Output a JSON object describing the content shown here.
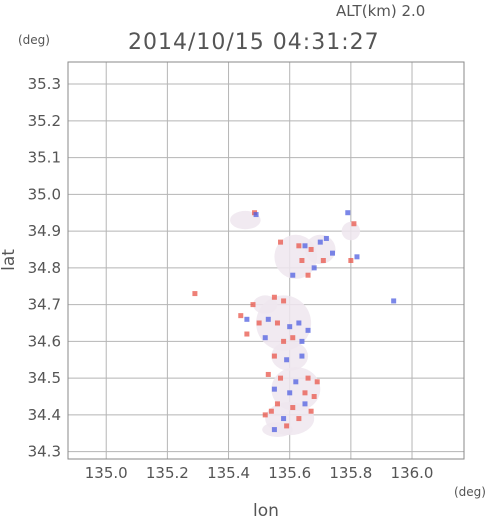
{
  "header": {
    "alt_label": "ALT(km) 2.0",
    "datetime": "2014/10/15 04:31:27"
  },
  "chart_data": {
    "type": "scatter",
    "title": "2014/10/15 04:31:27",
    "xlabel": "lon",
    "ylabel": "lat",
    "xunit": "(deg)",
    "yunit": "(deg)",
    "xlim": [
      134.875,
      136.17
    ],
    "ylim": [
      34.28,
      35.36
    ],
    "xticks": [
      "135.0",
      "135.2",
      "135.4",
      "135.6",
      "135.8",
      "136.0"
    ],
    "yticks": [
      "34.3",
      "34.4",
      "34.5",
      "34.6",
      "34.7",
      "34.8",
      "34.9",
      "35.0",
      "35.1",
      "35.2",
      "35.3"
    ],
    "grid": true,
    "colors": {
      "positive": "#e8564a",
      "negative": "#4f5fe0",
      "neutral": "#efe6ee"
    },
    "echo_regions": [
      {
        "lon": 135.455,
        "lat": 34.93,
        "w": 0.1,
        "h": 0.05
      },
      {
        "lon": 135.62,
        "lat": 34.83,
        "w": 0.14,
        "h": 0.12
      },
      {
        "lon": 135.7,
        "lat": 34.85,
        "w": 0.1,
        "h": 0.08
      },
      {
        "lon": 135.52,
        "lat": 34.7,
        "w": 0.08,
        "h": 0.05
      },
      {
        "lon": 135.58,
        "lat": 34.65,
        "w": 0.18,
        "h": 0.15
      },
      {
        "lon": 135.6,
        "lat": 34.56,
        "w": 0.12,
        "h": 0.08
      },
      {
        "lon": 135.62,
        "lat": 34.47,
        "w": 0.16,
        "h": 0.12
      },
      {
        "lon": 135.6,
        "lat": 34.39,
        "w": 0.16,
        "h": 0.09
      },
      {
        "lon": 135.56,
        "lat": 34.36,
        "w": 0.1,
        "h": 0.04
      },
      {
        "lon": 135.8,
        "lat": 34.9,
        "w": 0.06,
        "h": 0.05
      }
    ],
    "points": [
      {
        "lon": 135.29,
        "lat": 34.73,
        "v": 1
      },
      {
        "lon": 135.94,
        "lat": 34.71,
        "v": -1
      },
      {
        "lon": 135.485,
        "lat": 34.95,
        "v": 1
      },
      {
        "lon": 135.49,
        "lat": 34.945,
        "v": -1
      },
      {
        "lon": 135.81,
        "lat": 34.92,
        "v": 1
      },
      {
        "lon": 135.79,
        "lat": 34.95,
        "v": -1
      },
      {
        "lon": 135.57,
        "lat": 34.87,
        "v": 1
      },
      {
        "lon": 135.63,
        "lat": 34.86,
        "v": 1
      },
      {
        "lon": 135.65,
        "lat": 34.86,
        "v": -1
      },
      {
        "lon": 135.67,
        "lat": 34.85,
        "v": 1
      },
      {
        "lon": 135.7,
        "lat": 34.87,
        "v": -1
      },
      {
        "lon": 135.72,
        "lat": 34.88,
        "v": -1
      },
      {
        "lon": 135.64,
        "lat": 34.82,
        "v": 1
      },
      {
        "lon": 135.61,
        "lat": 34.78,
        "v": -1
      },
      {
        "lon": 135.66,
        "lat": 34.78,
        "v": 1
      },
      {
        "lon": 135.68,
        "lat": 34.8,
        "v": -1
      },
      {
        "lon": 135.71,
        "lat": 34.82,
        "v": 1
      },
      {
        "lon": 135.74,
        "lat": 34.84,
        "v": -1
      },
      {
        "lon": 135.8,
        "lat": 34.82,
        "v": 1
      },
      {
        "lon": 135.82,
        "lat": 34.83,
        "v": -1
      },
      {
        "lon": 135.48,
        "lat": 34.7,
        "v": 1
      },
      {
        "lon": 135.55,
        "lat": 34.72,
        "v": 1
      },
      {
        "lon": 135.58,
        "lat": 34.71,
        "v": 1
      },
      {
        "lon": 135.44,
        "lat": 34.67,
        "v": 1
      },
      {
        "lon": 135.46,
        "lat": 34.66,
        "v": -1
      },
      {
        "lon": 135.5,
        "lat": 34.65,
        "v": 1
      },
      {
        "lon": 135.53,
        "lat": 34.66,
        "v": -1
      },
      {
        "lon": 135.56,
        "lat": 34.65,
        "v": 1
      },
      {
        "lon": 135.6,
        "lat": 34.64,
        "v": -1
      },
      {
        "lon": 135.63,
        "lat": 34.65,
        "v": -1
      },
      {
        "lon": 135.66,
        "lat": 34.63,
        "v": -1
      },
      {
        "lon": 135.46,
        "lat": 34.62,
        "v": 1
      },
      {
        "lon": 135.52,
        "lat": 34.61,
        "v": -1
      },
      {
        "lon": 135.58,
        "lat": 34.6,
        "v": 1
      },
      {
        "lon": 135.61,
        "lat": 34.61,
        "v": 1
      },
      {
        "lon": 135.64,
        "lat": 34.6,
        "v": -1
      },
      {
        "lon": 135.55,
        "lat": 34.56,
        "v": 1
      },
      {
        "lon": 135.59,
        "lat": 34.55,
        "v": -1
      },
      {
        "lon": 135.64,
        "lat": 34.56,
        "v": -1
      },
      {
        "lon": 135.53,
        "lat": 34.51,
        "v": 1
      },
      {
        "lon": 135.57,
        "lat": 34.5,
        "v": 1
      },
      {
        "lon": 135.62,
        "lat": 34.49,
        "v": -1
      },
      {
        "lon": 135.66,
        "lat": 34.5,
        "v": 1
      },
      {
        "lon": 135.69,
        "lat": 34.49,
        "v": 1
      },
      {
        "lon": 135.55,
        "lat": 34.47,
        "v": -1
      },
      {
        "lon": 135.6,
        "lat": 34.46,
        "v": -1
      },
      {
        "lon": 135.65,
        "lat": 34.46,
        "v": 1
      },
      {
        "lon": 135.68,
        "lat": 34.45,
        "v": 1
      },
      {
        "lon": 135.56,
        "lat": 34.43,
        "v": 1
      },
      {
        "lon": 135.61,
        "lat": 34.42,
        "v": 1
      },
      {
        "lon": 135.65,
        "lat": 34.43,
        "v": -1
      },
      {
        "lon": 135.67,
        "lat": 34.41,
        "v": 1
      },
      {
        "lon": 135.52,
        "lat": 34.4,
        "v": 1
      },
      {
        "lon": 135.54,
        "lat": 34.41,
        "v": 1
      },
      {
        "lon": 135.58,
        "lat": 34.39,
        "v": -1
      },
      {
        "lon": 135.63,
        "lat": 34.39,
        "v": 1
      },
      {
        "lon": 135.59,
        "lat": 34.37,
        "v": 1
      },
      {
        "lon": 135.55,
        "lat": 34.36,
        "v": -1
      }
    ]
  }
}
